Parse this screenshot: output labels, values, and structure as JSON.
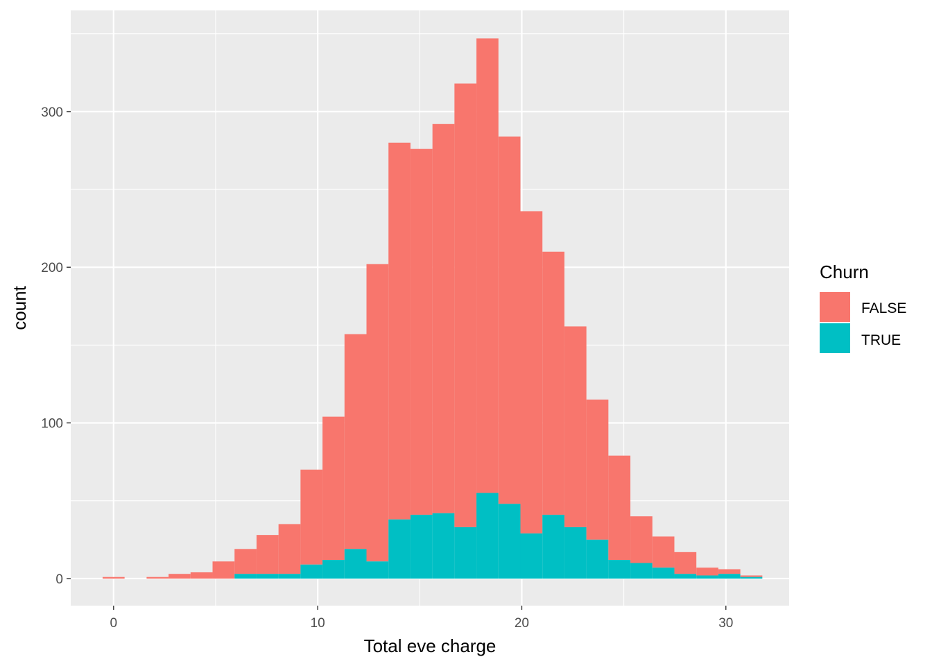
{
  "chart_data": {
    "type": "bar",
    "subtype": "stacked histogram",
    "xlabel": "Total eve charge",
    "ylabel": "count",
    "xlim": [
      -2.1,
      33.1
    ],
    "ylim": [
      -17.4,
      365
    ],
    "x_ticks": [
      0,
      10,
      20,
      30
    ],
    "y_ticks": [
      0,
      100,
      200,
      300
    ],
    "grid": true,
    "background": "#ebebeb",
    "legend_position": "right",
    "legend": {
      "title": "Churn",
      "entries": [
        {
          "label": "FALSE",
          "color": "#f8766d"
        },
        {
          "label": "TRUE",
          "color": "#00bfc4"
        }
      ]
    },
    "bin_width": 1.0775,
    "bin_centers": [
      0.0,
      1.0775,
      2.155,
      3.2325,
      4.31,
      5.3875,
      6.465,
      7.5425,
      8.62,
      9.6975,
      10.775,
      11.8525,
      12.93,
      14.0075,
      15.085,
      16.1625,
      17.24,
      18.3175,
      19.395,
      20.4725,
      21.55,
      22.6275,
      23.705,
      24.7825,
      25.86,
      26.9375,
      28.015,
      29.0925,
      30.17,
      31.2475
    ],
    "series": [
      {
        "name": "TRUE",
        "color": "#00bfc4",
        "values": [
          0,
          0,
          0,
          0,
          0,
          0,
          3,
          3,
          3,
          9,
          12,
          19,
          11,
          38,
          41,
          42,
          33,
          55,
          48,
          29,
          41,
          33,
          25,
          12,
          10,
          7,
          3,
          2,
          3,
          1
        ]
      },
      {
        "name": "FALSE",
        "color": "#f8766d",
        "values": [
          1,
          0,
          1,
          3,
          4,
          11,
          16,
          25,
          32,
          61,
          92,
          138,
          191,
          242,
          235,
          250,
          285,
          292,
          236,
          207,
          169,
          129,
          90,
          67,
          30,
          20,
          14,
          5,
          3,
          1
        ]
      }
    ]
  }
}
